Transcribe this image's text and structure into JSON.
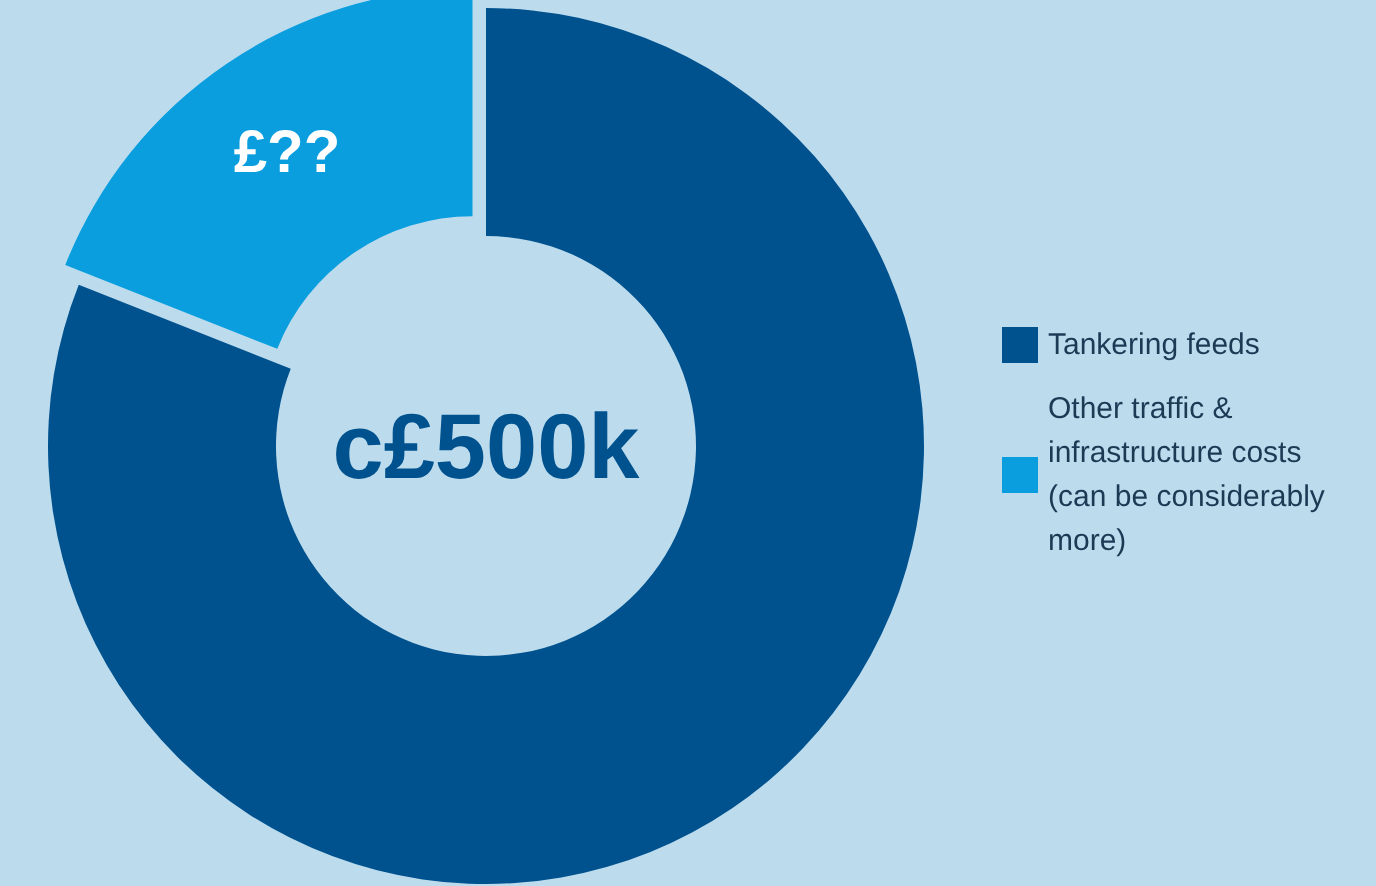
{
  "chart_data": {
    "type": "donut",
    "categories": [
      "Tankering feeds",
      "Other traffic & infrastructure costs (can be considerably more)"
    ],
    "values": [
      81,
      19
    ],
    "colors": [
      "#00528f",
      "#0b9ede"
    ],
    "value_labels": [
      null,
      "£??"
    ],
    "annotations": [
      "c£500k"
    ],
    "legend": "right"
  }
}
